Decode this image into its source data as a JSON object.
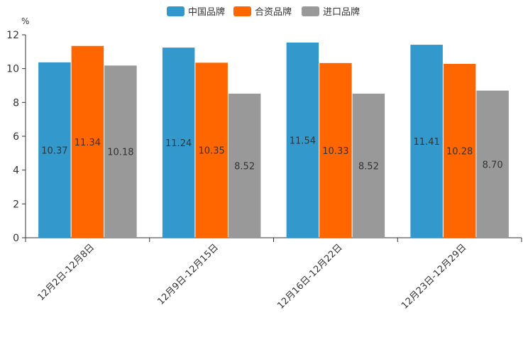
{
  "chart_data": {
    "type": "bar",
    "unit_label": "%",
    "categories": [
      "12月2日-12月8日",
      "12月9日-12月15日",
      "12月16日-12月22日",
      "12月23日-12月29日"
    ],
    "series": [
      {
        "name": "中国品牌",
        "color": "#3399cc",
        "values": [
          10.37,
          11.24,
          11.54,
          11.41
        ],
        "labels": [
          "10.37",
          "11.24",
          "11.54",
          "11.41"
        ]
      },
      {
        "name": "合资品牌",
        "color": "#ff6600",
        "values": [
          11.34,
          10.35,
          10.33,
          10.28
        ],
        "labels": [
          "11.34",
          "10.35",
          "10.33",
          "10.28"
        ]
      },
      {
        "name": "进口品牌",
        "color": "#999999",
        "values": [
          10.18,
          8.52,
          8.52,
          8.7
        ],
        "labels": [
          "10.18",
          "8.52",
          "8.52",
          "8.70"
        ]
      }
    ],
    "ylim": [
      0,
      12
    ],
    "yticks": [
      "0",
      "2",
      "4",
      "6",
      "8",
      "10",
      "12"
    ],
    "legend_position": "top-center",
    "grid": false
  }
}
